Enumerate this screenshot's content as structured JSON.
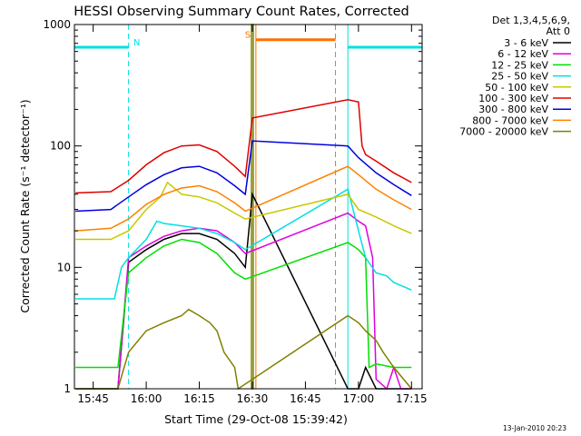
{
  "chart_data": {
    "type": "line",
    "title": "HESSI Observing Summary Count Rates, Corrected",
    "xlabel": "Start Time (29-Oct-08 15:39:42)",
    "ylabel": "Corrected Count Rate (s⁻¹ detector⁻¹)",
    "yscale": "log",
    "ylim": [
      1,
      1000
    ],
    "xlim": [
      "15:39:42",
      "17:18:00"
    ],
    "x_ticks": [
      "15:45",
      "16:00",
      "16:15",
      "16:30",
      "16:45",
      "17:00",
      "17:15"
    ],
    "y_ticks": [
      "1",
      "10",
      "100",
      "1000"
    ],
    "legend_header": [
      "Det 1,3,4,5,6,9,",
      "Att 0"
    ],
    "legend_position": "right",
    "series": [
      {
        "name": "3 - 6 keV",
        "color": "#000000",
        "x": [
          "15:40",
          "15:52",
          "15:55",
          "16:00",
          "16:05",
          "16:10",
          "16:15",
          "16:20",
          "16:25",
          "16:28",
          "16:30",
          "16:57",
          "17:00",
          "17:02",
          "17:05",
          "17:10",
          "17:15"
        ],
        "y": [
          1,
          1,
          11,
          14,
          17,
          19,
          19,
          17,
          13,
          10,
          40,
          1,
          1,
          1.5,
          1,
          1,
          1
        ]
      },
      {
        "name": "6 - 12 keV",
        "color": "#e000e0",
        "x": [
          "15:52",
          "15:55",
          "16:00",
          "16:05",
          "16:10",
          "16:15",
          "16:20",
          "16:25",
          "16:28",
          "16:57",
          "17:00",
          "17:02",
          "17:04",
          "17:05",
          "17:08",
          "17:10",
          "17:12",
          "17:15"
        ],
        "y": [
          1,
          12,
          15,
          18,
          20,
          21,
          20,
          16,
          13,
          28,
          24,
          22,
          12,
          1.2,
          1,
          1.5,
          1,
          1
        ]
      },
      {
        "name": "12 - 25 keV",
        "color": "#00e000",
        "x": [
          "15:40",
          "15:52",
          "15:55",
          "16:00",
          "16:05",
          "16:10",
          "16:15",
          "16:20",
          "16:25",
          "16:28",
          "16:57",
          "17:00",
          "17:02",
          "17:03",
          "17:05",
          "17:10",
          "17:15"
        ],
        "y": [
          1.5,
          1.5,
          9,
          12,
          15,
          17,
          16,
          13,
          9,
          8,
          16,
          14,
          12,
          1.5,
          1.6,
          1.5,
          1.5
        ]
      },
      {
        "name": "25 - 50 keV",
        "color": "#00e0e0",
        "x": [
          "15:40",
          "15:51",
          "15:53",
          "15:55",
          "16:00",
          "16:03",
          "16:05",
          "16:10",
          "16:15",
          "16:20",
          "16:25",
          "16:28",
          "16:57",
          "17:00",
          "17:02",
          "17:05",
          "17:08",
          "17:10",
          "17:15"
        ],
        "y": [
          5.5,
          5.5,
          10,
          12,
          17,
          24,
          23,
          22,
          21,
          19,
          16,
          14,
          44,
          20,
          12,
          9,
          8.5,
          7.5,
          6.5
        ]
      },
      {
        "name": "50 - 100 keV",
        "color": "#c8c800",
        "x": [
          "15:40",
          "15:50",
          "15:55",
          "16:00",
          "16:04",
          "16:06",
          "16:10",
          "16:15",
          "16:20",
          "16:25",
          "16:28",
          "16:57",
          "17:00",
          "17:05",
          "17:10",
          "17:15"
        ],
        "y": [
          17,
          17,
          20,
          30,
          38,
          50,
          40,
          38,
          34,
          28,
          25,
          40,
          30,
          26,
          22,
          19
        ]
      },
      {
        "name": "100 - 300 keV",
        "color": "#e00000",
        "x": [
          "15:40",
          "15:50",
          "15:55",
          "16:00",
          "16:05",
          "16:10",
          "16:15",
          "16:20",
          "16:25",
          "16:28",
          "16:30",
          "16:57",
          "17:00",
          "17:01",
          "17:02",
          "17:05",
          "17:10",
          "17:15"
        ],
        "y": [
          41,
          42,
          52,
          70,
          88,
          100,
          102,
          90,
          68,
          56,
          170,
          240,
          230,
          100,
          85,
          75,
          60,
          50
        ]
      },
      {
        "name": "300 - 800 keV",
        "color": "#0000e0",
        "x": [
          "15:40",
          "15:50",
          "15:55",
          "16:00",
          "16:05",
          "16:10",
          "16:15",
          "16:20",
          "16:25",
          "16:28",
          "16:30",
          "16:57",
          "17:00",
          "17:05",
          "17:10",
          "17:15"
        ],
        "y": [
          29,
          30,
          38,
          48,
          58,
          66,
          68,
          60,
          47,
          40,
          110,
          100,
          80,
          60,
          48,
          39
        ]
      },
      {
        "name": "800 - 7000 keV",
        "color": "#ff8000",
        "x": [
          "15:40",
          "15:50",
          "15:55",
          "16:00",
          "16:05",
          "16:10",
          "16:15",
          "16:20",
          "16:25",
          "16:28",
          "16:57",
          "17:00",
          "17:05",
          "17:10",
          "17:15"
        ],
        "y": [
          20,
          21,
          25,
          33,
          40,
          45,
          47,
          42,
          34,
          29,
          68,
          58,
          44,
          36,
          30
        ]
      },
      {
        "name": "7000 - 20000 keV",
        "color": "#808000",
        "x": [
          "15:40",
          "15:52",
          "15:55",
          "16:00",
          "16:05",
          "16:10",
          "16:12",
          "16:15",
          "16:18",
          "16:20",
          "16:22",
          "16:25",
          "16:26",
          "16:57",
          "17:00",
          "17:02",
          "17:05",
          "17:07",
          "17:10",
          "17:15"
        ],
        "y": [
          1,
          1,
          2,
          3,
          3.5,
          4,
          4.5,
          4,
          3.5,
          3,
          2,
          1.5,
          1,
          4,
          3.5,
          3,
          2.5,
          2,
          1.5,
          1
        ]
      }
    ],
    "flags": [
      {
        "label": "N",
        "color": "#00e0e0",
        "value": 650,
        "segments": [
          [
            "15:39:42",
            "15:55:00"
          ],
          [
            "16:57:00",
            "17:18:00"
          ]
        ]
      },
      {
        "label": "S",
        "color": "#ff7000",
        "value": 750,
        "segments": [
          [
            "16:31:00",
            "16:53:30"
          ]
        ]
      }
    ],
    "vertical_lines": [
      {
        "color": "#00e0e0",
        "style": "dashed",
        "x": "15:55:00"
      },
      {
        "color": "#00e0e0",
        "style": "solid",
        "x": "16:57:00"
      },
      {
        "color": "#00e0e0",
        "style": "dashed",
        "x": "17:18:00"
      },
      {
        "color": "#ff7000",
        "style": "solid",
        "x": "16:31:00"
      },
      {
        "color": "#ff7000",
        "style": "dashed",
        "x": "16:53:30"
      }
    ],
    "saa_spike": {
      "color": "#808000",
      "x": [
        "16:29:45",
        "16:30:15"
      ],
      "y": [
        1,
        1000
      ]
    },
    "footer": "13-Jan-2010 20:23"
  }
}
